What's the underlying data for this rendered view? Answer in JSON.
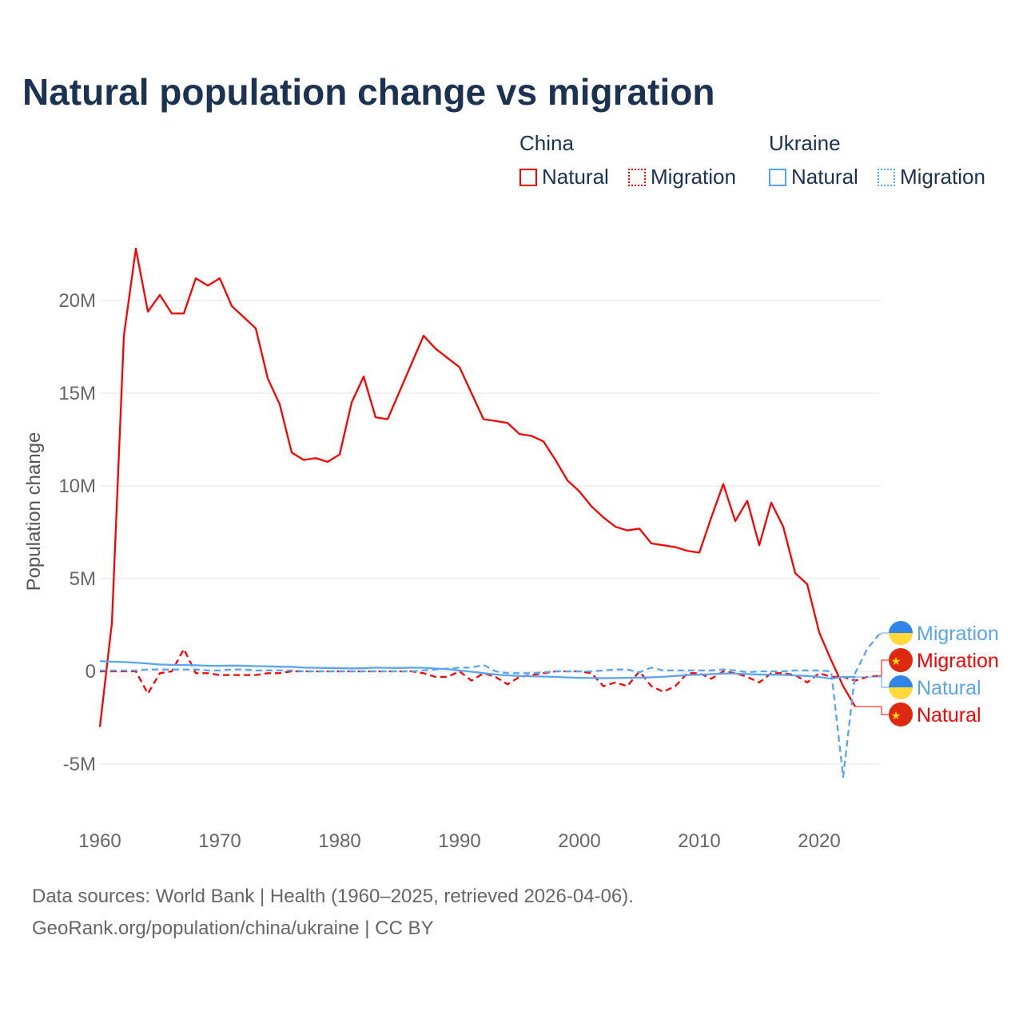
{
  "title": "Natural population change vs migration",
  "legend": {
    "groups": [
      {
        "name": "China",
        "color": "#ff0000",
        "items": [
          "Natural",
          "Migration"
        ]
      },
      {
        "name": "Ukraine",
        "color": "#5aa5f0",
        "items": [
          "Natural",
          "Migration"
        ]
      }
    ]
  },
  "footer": {
    "line1": "Data sources: World Bank | Health (1960–2025, retrieved 2026-04-06).",
    "line2": "GeoRank.org/population/china/ukraine | CC BY"
  },
  "chart_data": {
    "type": "line",
    "title": "Natural population change vs migration",
    "ylabel": "Population change",
    "xlabel": "",
    "xlim": [
      1960,
      2025
    ],
    "ylim": [
      -7,
      24
    ],
    "units": "millions",
    "x_ticks": [
      1960,
      1970,
      1980,
      1990,
      2000,
      2010,
      2020
    ],
    "y_ticks": [
      {
        "v": -5,
        "label": "-5M"
      },
      {
        "v": 0,
        "label": "0"
      },
      {
        "v": 5,
        "label": "5M"
      },
      {
        "v": 10,
        "label": "10M"
      },
      {
        "v": 15,
        "label": "15M"
      },
      {
        "v": 20,
        "label": "20M"
      }
    ],
    "grid": true,
    "series": [
      {
        "name": "China Natural",
        "label": "Natural",
        "country": "China",
        "color": "#ff0000",
        "dash": false,
        "start": 1960,
        "values": [
          -3.0,
          2.6,
          18.1,
          22.8,
          19.4,
          20.3,
          19.3,
          19.3,
          21.2,
          20.8,
          21.2,
          19.7,
          19.1,
          18.5,
          15.8,
          14.4,
          11.8,
          11.4,
          11.5,
          11.3,
          11.7,
          14.5,
          15.9,
          13.7,
          13.6,
          15.1,
          16.6,
          18.1,
          17.4,
          16.9,
          16.4,
          15.0,
          13.6,
          13.5,
          13.4,
          12.8,
          12.7,
          12.4,
          11.4,
          10.3,
          9.7,
          8.9,
          8.3,
          7.8,
          7.6,
          7.7,
          6.9,
          6.8,
          6.7,
          6.5,
          6.4,
          8.3,
          10.1,
          8.1,
          9.2,
          6.8,
          9.1,
          7.8,
          5.3,
          4.7,
          2.1,
          0.6,
          -0.8,
          -1.9
        ]
      },
      {
        "name": "China Migration",
        "label": "Migration",
        "country": "China",
        "color": "#ff0000",
        "dash": true,
        "start": 1960,
        "values": [
          0,
          0,
          0,
          0,
          -1.2,
          -0.1,
          0,
          1.2,
          -0.1,
          -0.1,
          -0.2,
          -0.2,
          -0.2,
          -0.2,
          -0.1,
          -0.1,
          0,
          0,
          0,
          0,
          0,
          0,
          0,
          0,
          0,
          0,
          0,
          -0.1,
          -0.3,
          -0.3,
          0,
          -0.5,
          -0.1,
          -0.3,
          -0.7,
          -0.3,
          -0.2,
          -0.1,
          0,
          0,
          0,
          -0.1,
          -0.8,
          -0.6,
          -0.8,
          0,
          -0.8,
          -1.1,
          -0.8,
          -0.1,
          -0.1,
          -0.4,
          0,
          -0.1,
          -0.3,
          -0.6,
          -0.1,
          -0.1,
          -0.2,
          -0.6,
          -0.1,
          -0.3,
          -0.3,
          -0.5,
          -0.3,
          -0.25
        ]
      },
      {
        "name": "Ukraine Natural",
        "label": "Natural",
        "country": "Ukraine",
        "color": "#5aa5f0",
        "dash": false,
        "start": 1960,
        "values": [
          0.55,
          0.52,
          0.5,
          0.47,
          0.42,
          0.37,
          0.35,
          0.34,
          0.33,
          0.3,
          0.3,
          0.31,
          0.3,
          0.28,
          0.27,
          0.25,
          0.24,
          0.2,
          0.19,
          0.18,
          0.17,
          0.16,
          0.17,
          0.2,
          0.19,
          0.18,
          0.2,
          0.19,
          0.15,
          0.12,
          0.05,
          -0.02,
          -0.1,
          -0.17,
          -0.22,
          -0.25,
          -0.27,
          -0.28,
          -0.3,
          -0.33,
          -0.35,
          -0.36,
          -0.37,
          -0.36,
          -0.35,
          -0.34,
          -0.32,
          -0.29,
          -0.25,
          -0.2,
          -0.18,
          -0.15,
          -0.12,
          -0.12,
          -0.15,
          -0.17,
          -0.18,
          -0.19,
          -0.22,
          -0.25,
          -0.3,
          -0.4,
          -0.3,
          -0.3
        ]
      },
      {
        "name": "Ukraine Migration",
        "label": "Migration",
        "country": "Ukraine",
        "color": "#5aa5f0",
        "dash": true,
        "start": 1960,
        "values": [
          0.05,
          0.05,
          0.05,
          0.05,
          0.1,
          0.1,
          0.1,
          0.1,
          0.1,
          0.05,
          0.05,
          0.1,
          0.1,
          0.05,
          0.05,
          0.05,
          0.05,
          0,
          0,
          0,
          0,
          0,
          0,
          0,
          0,
          0,
          0,
          0.05,
          0.1,
          0.15,
          0.2,
          0.2,
          0.35,
          0,
          -0.1,
          -0.1,
          -0.1,
          -0.05,
          0,
          0,
          0,
          0,
          0.05,
          0.1,
          0.1,
          -0.05,
          0.2,
          0.05,
          0.05,
          0.05,
          0.05,
          0.05,
          0.1,
          0.05,
          -0.05,
          0,
          0,
          0,
          0.05,
          0.05,
          0.05,
          0,
          -5.7,
          -0.1,
          1.2,
          2.0
        ]
      }
    ]
  }
}
